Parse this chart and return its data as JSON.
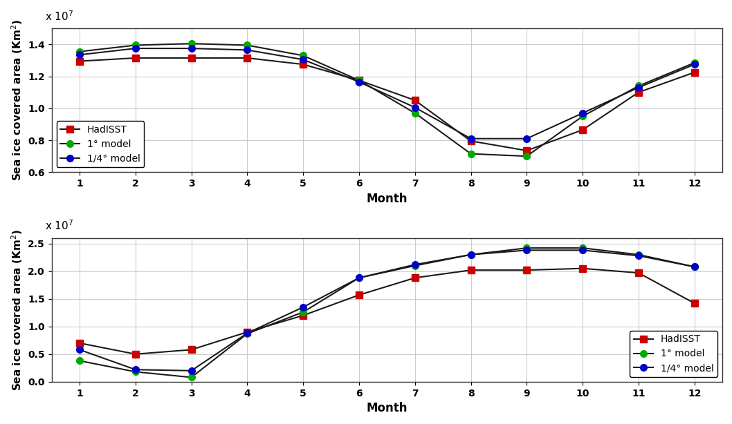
{
  "months": [
    1,
    2,
    3,
    4,
    5,
    6,
    7,
    8,
    9,
    10,
    11,
    12
  ],
  "top": {
    "HadISST": [
      1.295,
      1.315,
      1.315,
      1.315,
      1.275,
      1.175,
      1.05,
      0.795,
      0.735,
      0.865,
      1.1,
      1.225
    ],
    "model_1deg": [
      1.355,
      1.395,
      1.405,
      1.395,
      1.33,
      1.175,
      0.97,
      0.715,
      0.7,
      0.95,
      1.14,
      1.285
    ],
    "model_025deg": [
      1.335,
      1.375,
      1.375,
      1.365,
      1.305,
      1.165,
      1.005,
      0.81,
      0.81,
      0.97,
      1.13,
      1.275
    ],
    "ylim": [
      0.6,
      1.5
    ],
    "yticks": [
      0.6,
      0.8,
      1.0,
      1.2,
      1.4
    ],
    "scale_label": "x 10$^7$",
    "legend_loc": "lower left"
  },
  "bottom": {
    "HadISST": [
      0.7,
      0.5,
      0.58,
      0.9,
      1.2,
      1.57,
      1.88,
      2.02,
      2.02,
      2.05,
      1.97,
      1.42
    ],
    "model_1deg": [
      0.38,
      0.18,
      0.08,
      0.87,
      1.26,
      1.88,
      2.1,
      2.3,
      2.42,
      2.42,
      2.3,
      2.08
    ],
    "model_025deg": [
      0.58,
      0.22,
      0.2,
      0.88,
      1.35,
      1.88,
      2.12,
      2.3,
      2.38,
      2.38,
      2.28,
      2.08
    ],
    "ylim": [
      0.0,
      2.6
    ],
    "yticks": [
      0.0,
      0.5,
      1.0,
      1.5,
      2.0,
      2.5
    ],
    "scale_label": "x 10$^7$",
    "legend_loc": "lower right"
  },
  "colors": {
    "HadISST": "#cc0000",
    "model_1deg": "#00aa00",
    "model_025deg": "#0000cc"
  },
  "marker_HadISST": "s",
  "marker_1deg": "o",
  "marker_025deg": "o",
  "linewidth": 1.5,
  "markersize": 7,
  "xlabel": "Month",
  "ylabel": "Sea ice covered area (Km$^2$)",
  "legend_labels": [
    "HadISST",
    "1° model",
    "1/4° model"
  ],
  "grid_color": "#cccccc",
  "bg_color": "#ffffff",
  "line_color": "#1a1a1a"
}
